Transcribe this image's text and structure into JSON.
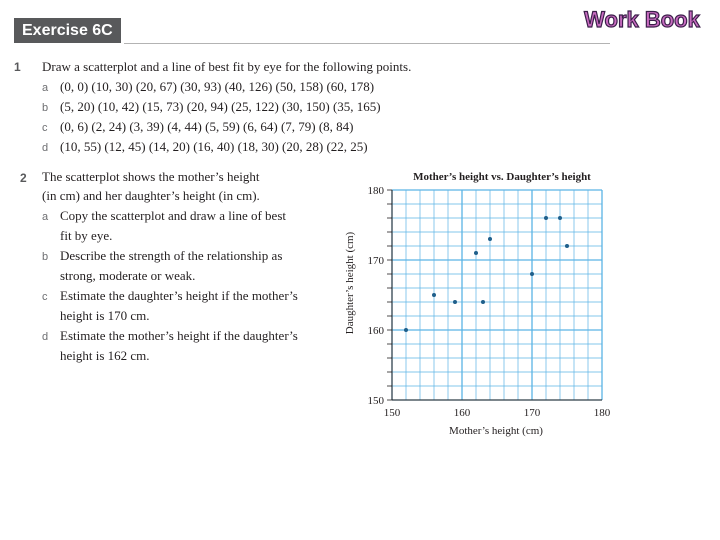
{
  "header": {
    "exercise_label": "Exercise 6C",
    "logo_text": "Work Book"
  },
  "question1": {
    "number": "1",
    "stem": "Draw a scatterplot and a line of best fit by eye for the following points.",
    "parts": [
      {
        "letter": "a",
        "text": "(0, 0) (10, 30) (20, 67) (30, 93) (40, 126) (50, 158) (60, 178)"
      },
      {
        "letter": "b",
        "text": "(5, 20) (10, 42) (15, 73) (20, 94) (25, 122) (30, 150) (35, 165)"
      },
      {
        "letter": "c",
        "text": "(0, 6) (2, 24) (3, 39) (4, 44) (5, 59) (6, 64) (7, 79) (8, 84)"
      },
      {
        "letter": "d",
        "text": "(10, 55) (12, 45) (14, 20) (16, 40) (18, 30) (20, 28) (22, 25)"
      }
    ]
  },
  "question2": {
    "number": "2",
    "stem_lines": [
      "The scatterplot shows the mother’s height",
      "(in cm) and her daughter’s height (in cm)."
    ],
    "parts": [
      {
        "letter": "a",
        "lines": [
          "Copy the scatterplot and draw a line of best",
          "fit by eye."
        ]
      },
      {
        "letter": "b",
        "lines": [
          "Describe the strength of the relationship as",
          "strong, moderate or weak."
        ]
      },
      {
        "letter": "c",
        "lines": [
          "Estimate the daughter’s height if the mother’s",
          "height is 170 cm."
        ]
      },
      {
        "letter": "d",
        "lines": [
          "Estimate the mother’s height if the daughter’s",
          "height is 162 cm."
        ]
      }
    ]
  },
  "chart_data": {
    "type": "scatter",
    "title": "Mother’s height vs. Daughter’s height",
    "xlabel": "Mother’s height (cm)",
    "ylabel": "Daughter’s height (cm)",
    "xlim": [
      150,
      180
    ],
    "ylim": [
      150,
      180
    ],
    "xticks": [
      "150",
      "160",
      "170",
      "180"
    ],
    "yticks": [
      "150",
      "160",
      "170",
      "180"
    ],
    "grid": true,
    "colors": {
      "grid": "#5ab4e5",
      "point": "#1f5f8b"
    },
    "points": [
      {
        "x": 152,
        "y": 160
      },
      {
        "x": 156,
        "y": 165
      },
      {
        "x": 159,
        "y": 164
      },
      {
        "x": 162,
        "y": 171
      },
      {
        "x": 163,
        "y": 164
      },
      {
        "x": 164,
        "y": 173
      },
      {
        "x": 170,
        "y": 168
      },
      {
        "x": 172,
        "y": 176
      },
      {
        "x": 174,
        "y": 176
      },
      {
        "x": 175,
        "y": 172
      }
    ]
  }
}
